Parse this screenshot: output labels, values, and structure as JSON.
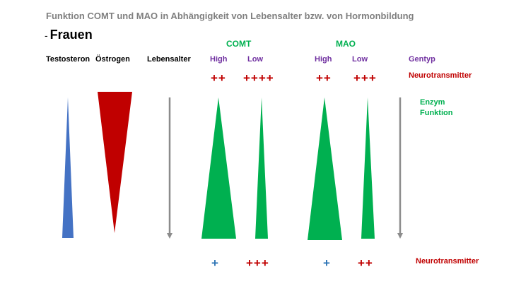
{
  "title": "Funktion COMT und MAO in Abhängigkeit von Lebensalter bzw. von Hormonbildung",
  "subtitle_dash": "-",
  "subtitle": "Frauen",
  "columns": {
    "testosteron": "Testosteron",
    "oestrogen": "Östrogen",
    "lebensalter": "Lebensalter"
  },
  "groups": {
    "comt": "COMT",
    "mao": "MAO"
  },
  "genotypes": {
    "comt_high": "High",
    "comt_low": "Low",
    "mao_high": "High",
    "mao_low": "Low"
  },
  "side_labels": {
    "gentyp": "Gentyp",
    "neurotransmitter_top": "Neurotransmitter",
    "enzym": "Enzym",
    "funktion": "Funktion",
    "neurotransmitter_bottom": "Neurotransmitter"
  },
  "top_levels": {
    "comt_high": "++",
    "comt_low": "++++",
    "mao_high": "++",
    "mao_low": "+++"
  },
  "bottom_levels": {
    "comt_high": "+",
    "comt_low": "+++",
    "mao_high": "+",
    "mao_low": "++"
  },
  "colors": {
    "testosteron": "#4472c4",
    "oestrogen": "#c00000",
    "enzyme": "#00b050",
    "arrow": "#8c8c8c",
    "neurotransmitter_red": "#c00000",
    "neurotransmitter_blue": "#2e75b6",
    "gentyp": "#7030a0",
    "title_gray": "#808080"
  }
}
